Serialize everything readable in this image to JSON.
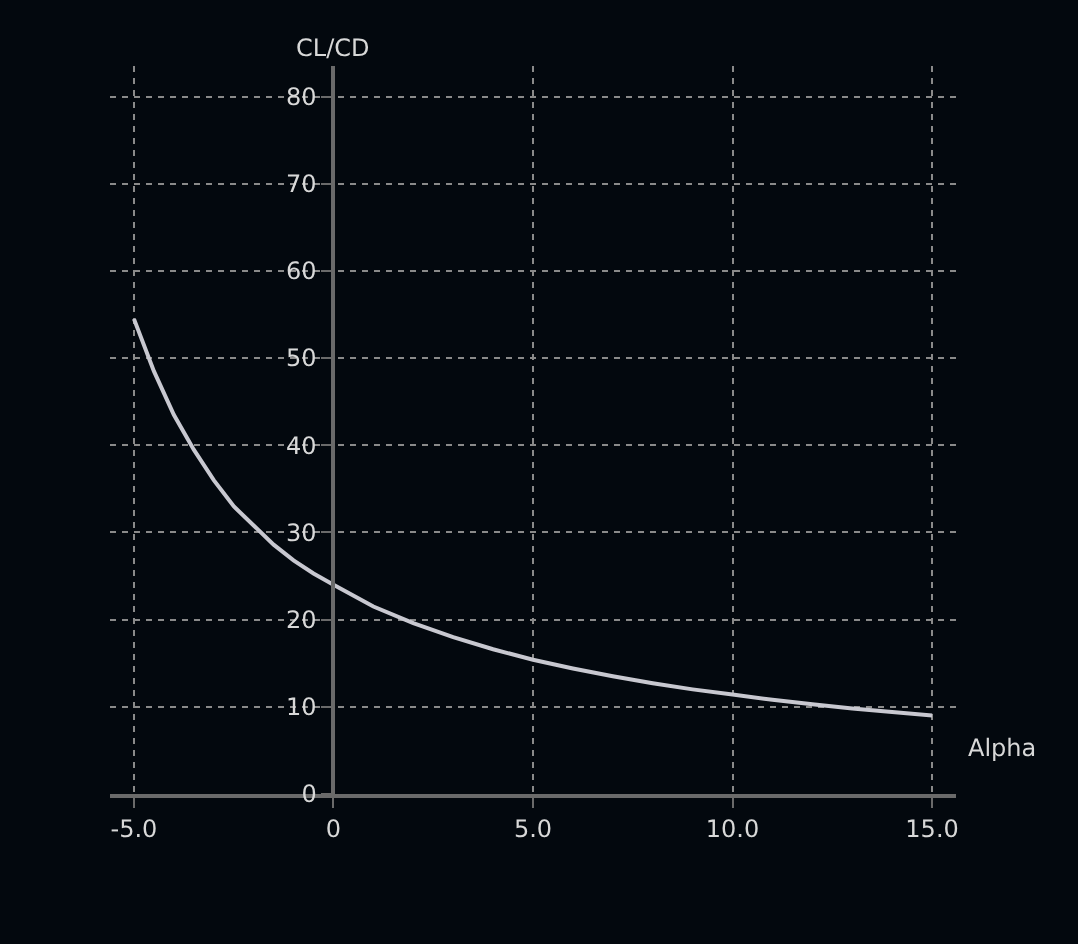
{
  "chart_data": {
    "type": "line",
    "xlabel": "Alpha",
    "ylabel": "CL/CD",
    "x": [
      -5,
      -4.5,
      -4,
      -3.5,
      -3,
      -2.5,
      -2,
      -1.5,
      -1,
      -0.5,
      0,
      1,
      2,
      3,
      4,
      5,
      6,
      7,
      8,
      9,
      10,
      11,
      12,
      13,
      14,
      15
    ],
    "series": [
      {
        "color": "#c8c8d0",
        "values": [
          54.5,
          48.5,
          43.5,
          39.5,
          36,
          33,
          30.8,
          28.6,
          26.8,
          25.3,
          24,
          21.5,
          19.6,
          18,
          16.6,
          15.4,
          14.4,
          13.5,
          12.7,
          12,
          11.4,
          10.8,
          10.3,
          9.8,
          9.4,
          9
        ]
      }
    ],
    "xlim": [
      -5.6,
      15.6
    ],
    "ylim": [
      0,
      83.5
    ],
    "xticks": [
      {
        "value": -5,
        "label": "-5.0"
      },
      0,
      {
        "value": 5,
        "label": "5.0"
      },
      {
        "value": 10,
        "label": "10.0"
      },
      {
        "value": 15,
        "label": "15.0"
      }
    ],
    "yticks": [
      0,
      10,
      20,
      30,
      40,
      50,
      60,
      70,
      80
    ],
    "grid": true,
    "line_style": "solid",
    "legend": false
  }
}
